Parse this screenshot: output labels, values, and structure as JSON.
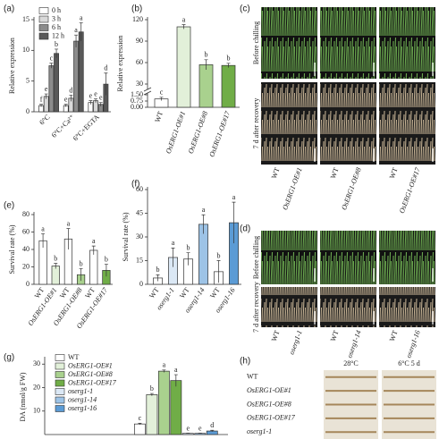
{
  "chart_data": [
    {
      "type": "bar",
      "panel": "(a)",
      "ylabel": "Relative expression",
      "categories": [
        "6°C",
        "6°C+Ca²⁺",
        "6°C+EGTA"
      ],
      "series": [
        {
          "name": "0 h",
          "color": "#ffffff",
          "values": [
            1,
            1,
            1.5
          ],
          "errors": [
            0.2,
            0.2,
            0.3
          ],
          "letters": [
            "f",
            "e",
            "e"
          ]
        },
        {
          "name": "3 h",
          "color": "#d9d9d9",
          "values": [
            2.5,
            2.2,
            1.8
          ],
          "errors": [
            0.4,
            0.5,
            0.3
          ],
          "letters": [
            "e",
            "d",
            "e"
          ]
        },
        {
          "name": "6 h",
          "color": "#8c8c8c",
          "values": [
            7.5,
            11.5,
            1.2
          ],
          "errors": [
            0.4,
            1,
            0.3
          ],
          "letters": [
            "c",
            "a",
            "e"
          ]
        },
        {
          "name": "12 h",
          "color": "#595959",
          "values": [
            9.5,
            13,
            4.5
          ],
          "errors": [
            0.7,
            1.5,
            1.8
          ],
          "letters": [
            "b",
            "a",
            "d"
          ]
        }
      ],
      "ylim": [
        0,
        15
      ],
      "yticks": [
        0,
        5,
        10,
        15
      ],
      "legend": "upper-left"
    },
    {
      "type": "bar",
      "panel": "(b)",
      "ylabel": "Relative expression",
      "categories": [
        "WT",
        "OsERG1-OE#1",
        "OsERG1-OE#8",
        "OsERG1-OE#17"
      ],
      "values": [
        1,
        110,
        57,
        56
      ],
      "errors": [
        0.2,
        3,
        7,
        3
      ],
      "letters": [
        "c",
        "a",
        "b",
        "b"
      ],
      "colors": [
        "#ffffff",
        "#e2f0d9",
        "#a9d18e",
        "#70ad47"
      ],
      "ylim": [
        0,
        120
      ],
      "ybreak": [
        1.5,
        25
      ],
      "yticks": [
        {
          "value": 0,
          "label": "0.00"
        },
        {
          "value": 0.75,
          "label": "0.75"
        },
        {
          "value": 1.5,
          "label": "1.50"
        },
        30,
        60,
        90,
        120
      ]
    },
    {
      "type": "bar",
      "panel": "(e)",
      "ylabel": "Survival rate (%)",
      "categories": [
        "WT",
        "OsERG1-OE#1",
        "WT",
        "OsERG1-OE#8",
        "WT",
        "OsERG1-OE#17"
      ],
      "values": [
        50,
        21,
        52,
        11,
        39,
        16
      ],
      "errors": [
        8,
        3,
        12,
        7,
        5,
        7
      ],
      "letters": [
        "a",
        "b",
        "a",
        "b",
        "a",
        "b"
      ],
      "colors": [
        "#ffffff",
        "#e2f0d9",
        "#ffffff",
        "#a9d18e",
        "#ffffff",
        "#70ad47"
      ],
      "ylim": [
        0,
        80
      ],
      "yticks": [
        0,
        20,
        40,
        60,
        80
      ]
    },
    {
      "type": "bar",
      "panel": "(f)",
      "ylabel": "Survival rate (%)",
      "categories": [
        "WT",
        "oserg1-1",
        "WT",
        "oserg1-14",
        "WT",
        "oserg1-16"
      ],
      "values": [
        4,
        17,
        16,
        38,
        8,
        39
      ],
      "errors": [
        2,
        6,
        4,
        6,
        7,
        13
      ],
      "letters": [
        "b",
        "a",
        "b",
        "a",
        "b",
        "a"
      ],
      "colors": [
        "#ffffff",
        "#dbe8f5",
        "#ffffff",
        "#9dc3e6",
        "#ffffff",
        "#5b9bd5"
      ],
      "ylim": [
        0,
        60
      ],
      "yticks": [
        0,
        15,
        30,
        45,
        60
      ]
    },
    {
      "type": "bar",
      "panel": "(g)",
      "ylabel": "DA (nmol/g FW)",
      "categories": [
        null
      ],
      "series": [
        {
          "name": "WT",
          "color": "#ffffff",
          "values": [
            4.5
          ],
          "errors": [
            0.3
          ],
          "letters": [
            "c"
          ]
        },
        {
          "name": "OsERG1-OE#1",
          "color": "#e2f0d9",
          "values": [
            17
          ],
          "errors": [
            0.5
          ],
          "letters": [
            "b"
          ]
        },
        {
          "name": "OsERG1-OE#8",
          "color": "#a9d18e",
          "values": [
            27
          ],
          "errors": [
            0.5
          ],
          "letters": [
            "a"
          ]
        },
        {
          "name": "OsERG1-OE#17",
          "color": "#70ad47",
          "values": [
            23
          ],
          "errors": [
            2.5
          ],
          "letters": [
            "a"
          ]
        },
        {
          "name": "oserg1-1",
          "color": "#dbe8f5",
          "values": [
            0.5
          ],
          "errors": [
            0.1
          ],
          "letters": [
            "e"
          ]
        },
        {
          "name": "oserg1-14",
          "color": "#9dc3e6",
          "values": [
            0.5
          ],
          "errors": [
            0.1
          ],
          "letters": [
            "e"
          ]
        },
        {
          "name": "oserg1-16",
          "color": "#5b9bd5",
          "values": [
            1.5
          ],
          "errors": [
            0.3
          ],
          "letters": [
            "d"
          ]
        }
      ],
      "ylim": [
        0,
        32
      ],
      "yticks": [
        10,
        20,
        30
      ],
      "legend": "upper-left"
    }
  ],
  "photo_panels": [
    {
      "panel": "(c)",
      "rows": [
        "Before chilling",
        "7 d after recovery"
      ],
      "columns": [
        [
          "WT",
          "OsERG1-OE#1"
        ],
        [
          "WT",
          "OsERG1-OE#8"
        ],
        [
          "WT",
          "OsERG1-OE#17"
        ]
      ]
    },
    {
      "panel": "(d)",
      "rows": [
        "Before chilling",
        "7 d after recovery"
      ],
      "columns": [
        [
          "WT",
          "oserg1-1"
        ],
        [
          "WT",
          "oserg1-14"
        ],
        [
          "WT",
          "oserg1-16"
        ]
      ]
    },
    {
      "panel": "(h)",
      "columns": [
        "28°C",
        "6°C 5 d"
      ],
      "rows": [
        "WT",
        "OsERG1-OE#1",
        "OsERG1-OE#8",
        "OsERG1-OE#17",
        "oserg1-1"
      ]
    }
  ]
}
